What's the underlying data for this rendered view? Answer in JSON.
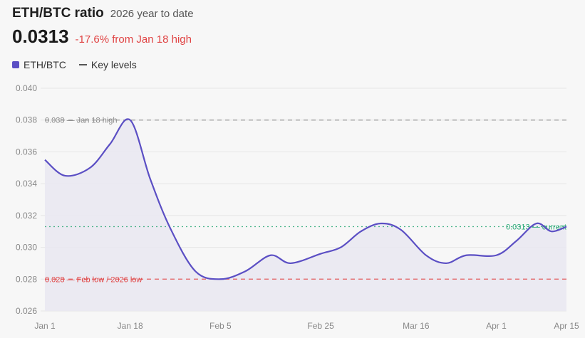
{
  "header": {
    "title": "ETH/BTC ratio",
    "subtitle": "2026 year to date",
    "current_value": "0.0313",
    "change_text": "-17.6% from Jan 18 high"
  },
  "legend": {
    "series_label": "ETH/BTC",
    "levels_label": "Key levels"
  },
  "colors": {
    "series": "#5b4fc4",
    "area_fill": "#e9e8f1",
    "high_line": "#888888",
    "low_line": "#e04444",
    "current_line": "#2aa876"
  },
  "chart_data": {
    "type": "line",
    "title": "ETH/BTC ratio",
    "subtitle": "2026 year to date",
    "xlabel": "",
    "ylabel": "",
    "ylim": [
      0.026,
      0.04
    ],
    "y_ticks": [
      "0.040",
      "0.038",
      "0.036",
      "0.034",
      "0.032",
      "0.030",
      "0.028",
      "0.026"
    ],
    "x_ticks": [
      "Jan 1",
      "Jan 18",
      "Feb 5",
      "Feb 25",
      "Mar 16",
      "Apr 1",
      "Apr 15"
    ],
    "grid": true,
    "legend_position": "top-left",
    "series": [
      {
        "name": "ETH/BTC",
        "x": [
          "Jan 1",
          "Jan 5",
          "Jan 10",
          "Jan 14",
          "Jan 18",
          "Jan 22",
          "Jan 26",
          "Jan 31",
          "Feb 5",
          "Feb 10",
          "Feb 15",
          "Feb 19",
          "Feb 25",
          "Mar 1",
          "Mar 5",
          "Mar 9",
          "Mar 13",
          "Mar 18",
          "Mar 22",
          "Mar 26",
          "Apr 1",
          "Apr 5",
          "Apr 9",
          "Apr 12",
          "Apr 15"
        ],
        "values": [
          0.0355,
          0.0345,
          0.035,
          0.0365,
          0.038,
          0.0343,
          0.0312,
          0.0285,
          0.028,
          0.0285,
          0.0295,
          0.029,
          0.0296,
          0.03,
          0.031,
          0.0315,
          0.0311,
          0.0295,
          0.029,
          0.0295,
          0.0295,
          0.0304,
          0.0315,
          0.031,
          0.0313
        ]
      }
    ],
    "annotations": [
      {
        "value": 0.038,
        "label": "0.038 — Jan 18 high",
        "style": "dashed",
        "color": "#888888"
      },
      {
        "value": 0.028,
        "label": "0.028 — Feb low / 2026 low",
        "style": "dashed",
        "color": "#e04444"
      },
      {
        "value": 0.0313,
        "label": "0.0313 — current",
        "style": "dotted",
        "color": "#2aa876"
      }
    ]
  }
}
